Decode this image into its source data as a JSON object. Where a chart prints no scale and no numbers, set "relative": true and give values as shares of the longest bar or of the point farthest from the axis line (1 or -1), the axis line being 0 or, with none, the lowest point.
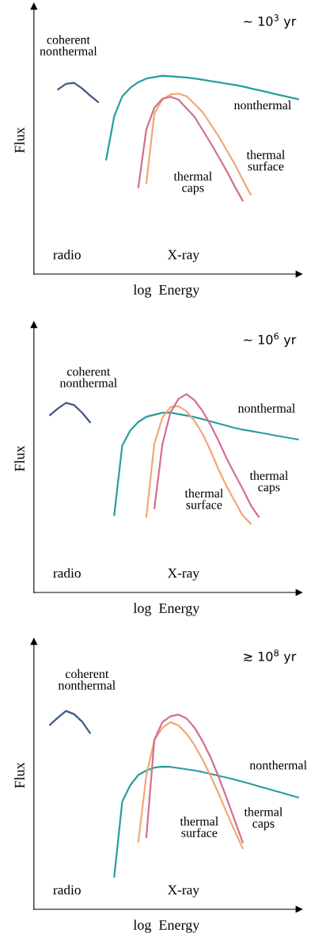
{
  "chart_data": [
    {
      "type": "line",
      "relative": true,
      "title": "∼ 10$^{3}$ yr",
      "xlabel": "log  Energy",
      "ylabel": "Flux",
      "annotations": [
        "radio",
        "X-ray"
      ],
      "categories": [
        null,
        null,
        null,
        null,
        null,
        null,
        null,
        null,
        null,
        null,
        null,
        null,
        null,
        null,
        null,
        null,
        null,
        null,
        null,
        null,
        null,
        null,
        null,
        null,
        null,
        null,
        null,
        null,
        null,
        null,
        null,
        null,
        null,
        null
      ],
      "series": [
        {
          "name": "coherent\nnonthermal",
          "color": "#3d5a80",
          "values": [
            null,
            null,
            null,
            0.931,
            0.959,
            0.964,
            0.936,
            0.9,
            0.867,
            null,
            null,
            null,
            null,
            null,
            null,
            null,
            null,
            null,
            null,
            null,
            null,
            null,
            null,
            null,
            null,
            null,
            null,
            null,
            null,
            null,
            null,
            null,
            null,
            null
          ]
        },
        {
          "name": "nonthermal",
          "color": "#2a9d9d",
          "values": [
            null,
            null,
            null,
            null,
            null,
            null,
            null,
            null,
            null,
            0.577,
            0.796,
            0.896,
            0.939,
            0.968,
            0.986,
            0.993,
            1.0,
            0.997,
            0.994,
            0.991,
            0.986,
            0.98,
            0.973,
            0.967,
            0.96,
            0.954,
            0.946,
            0.936,
            0.927,
            0.918,
            0.908,
            0.899,
            0.89,
            0.881
          ]
        },
        {
          "name": "thermal\nsurface",
          "color": "#f0a878",
          "values": [
            null,
            null,
            null,
            null,
            null,
            null,
            null,
            null,
            null,
            null,
            null,
            null,
            null,
            null,
            0.457,
            0.81,
            0.881,
            0.905,
            0.91,
            0.897,
            0.858,
            0.817,
            0.756,
            0.695,
            0.625,
            0.555,
            0.475,
            0.4,
            null,
            null,
            null,
            null,
            null,
            null
          ]
        },
        {
          "name": "thermal\ncaps",
          "color": "#d2708f",
          "values": [
            null,
            null,
            null,
            null,
            null,
            null,
            null,
            null,
            null,
            null,
            null,
            null,
            null,
            0.437,
            0.73,
            0.839,
            0.884,
            0.894,
            0.88,
            0.836,
            0.793,
            0.727,
            0.661,
            0.591,
            0.52,
            0.442,
            0.37,
            null,
            null,
            null,
            null,
            null,
            null,
            null
          ]
        }
      ]
    },
    {
      "type": "line",
      "relative": true,
      "title": "∼ 10$^{6}$ yr",
      "xlabel": "log  Energy",
      "ylabel": "Flux",
      "annotations": [
        "radio",
        "X-ray"
      ],
      "categories": [
        null,
        null,
        null,
        null,
        null,
        null,
        null,
        null,
        null,
        null,
        null,
        null,
        null,
        null,
        null,
        null,
        null,
        null,
        null,
        null,
        null,
        null,
        null,
        null,
        null,
        null,
        null,
        null,
        null,
        null,
        null,
        null,
        null,
        null
      ],
      "series": [
        {
          "name": "coherent\nnonthermal",
          "color": "#3d5a80",
          "values": [
            null,
            null,
            0.894,
            0.928,
            0.956,
            0.945,
            0.907,
            0.858,
            null,
            null,
            null,
            null,
            null,
            null,
            null,
            null,
            null,
            null,
            null,
            null,
            null,
            null,
            null,
            null,
            null,
            null,
            null,
            null,
            null,
            null,
            null,
            null,
            null,
            null
          ]
        },
        {
          "name": "nonthermal",
          "color": "#2a9d9d",
          "values": [
            null,
            null,
            null,
            null,
            null,
            null,
            null,
            null,
            null,
            null,
            0.39,
            0.741,
            0.817,
            0.86,
            0.886,
            0.896,
            0.906,
            0.907,
            0.899,
            0.892,
            0.884,
            0.874,
            0.863,
            0.852,
            0.841,
            0.83,
            0.821,
            0.814,
            0.807,
            0.8,
            0.792,
            0.785,
            0.778,
            0.771
          ]
        },
        {
          "name": "thermal\nsurface",
          "color": "#f0a878",
          "values": [
            null,
            null,
            null,
            null,
            null,
            null,
            null,
            null,
            null,
            null,
            null,
            null,
            null,
            null,
            0.381,
            0.751,
            0.881,
            0.935,
            0.939,
            0.913,
            0.865,
            0.8,
            0.715,
            0.619,
            0.535,
            0.46,
            0.388,
            0.347,
            null,
            null,
            null,
            null,
            null,
            null
          ]
        },
        {
          "name": "thermal\ncaps",
          "color": "#d2708f",
          "values": [
            null,
            null,
            null,
            null,
            null,
            null,
            null,
            null,
            null,
            null,
            null,
            null,
            null,
            null,
            null,
            0.424,
            0.747,
            0.908,
            0.976,
            1.0,
            0.969,
            0.915,
            0.845,
            0.764,
            0.676,
            0.597,
            0.522,
            0.44,
            0.381,
            null,
            null,
            null,
            null,
            null
          ]
        }
      ]
    },
    {
      "type": "line",
      "relative": true,
      "title": "≳ 10$^{8}$ yr",
      "xlabel": "log  Energy",
      "ylabel": "Flux",
      "annotations": [
        "radio",
        "X-ray"
      ],
      "categories": [
        null,
        null,
        null,
        null,
        null,
        null,
        null,
        null,
        null,
        null,
        null,
        null,
        null,
        null,
        null,
        null,
        null,
        null,
        null,
        null,
        null,
        null,
        null,
        null,
        null,
        null,
        null,
        null,
        null,
        null,
        null,
        null,
        null,
        null
      ],
      "series": [
        {
          "name": "coherent\nnonthermal",
          "color": "#3d5a80",
          "values": [
            null,
            null,
            0.93,
            0.967,
            1.0,
            0.984,
            0.946,
            0.888,
            null,
            null,
            null,
            null,
            null,
            null,
            null,
            null,
            null,
            null,
            null,
            null,
            null,
            null,
            null,
            null,
            null,
            null,
            null,
            null,
            null,
            null,
            null,
            null,
            null,
            null
          ]
        },
        {
          "name": "nonthermal",
          "color": "#2a9d9d",
          "values": [
            null,
            null,
            null,
            null,
            null,
            null,
            null,
            null,
            null,
            null,
            0.163,
            0.543,
            0.626,
            0.677,
            0.7,
            0.714,
            0.719,
            0.718,
            0.712,
            0.706,
            0.7,
            0.692,
            0.683,
            0.673,
            0.664,
            0.654,
            0.643,
            0.632,
            0.62,
            0.609,
            0.597,
            0.586,
            0.574,
            0.563
          ]
        },
        {
          "name": "thermal\nsurface",
          "color": "#f0a878",
          "values": [
            null,
            null,
            null,
            null,
            null,
            null,
            null,
            null,
            null,
            null,
            null,
            null,
            null,
            0.34,
            0.676,
            0.853,
            0.915,
            0.944,
            0.927,
            0.886,
            0.828,
            0.755,
            0.672,
            0.584,
            0.488,
            0.396,
            0.307,
            null,
            null,
            null,
            null,
            null,
            null,
            null
          ]
        },
        {
          "name": "thermal\ncaps",
          "color": "#d2708f",
          "values": [
            null,
            null,
            null,
            null,
            null,
            null,
            null,
            null,
            null,
            null,
            null,
            null,
            null,
            null,
            0.363,
            0.855,
            0.944,
            0.973,
            0.982,
            0.963,
            0.916,
            0.848,
            0.766,
            0.668,
            0.561,
            0.449,
            0.337,
            null,
            null,
            null,
            null,
            null,
            null,
            null
          ]
        }
      ]
    }
  ]
}
